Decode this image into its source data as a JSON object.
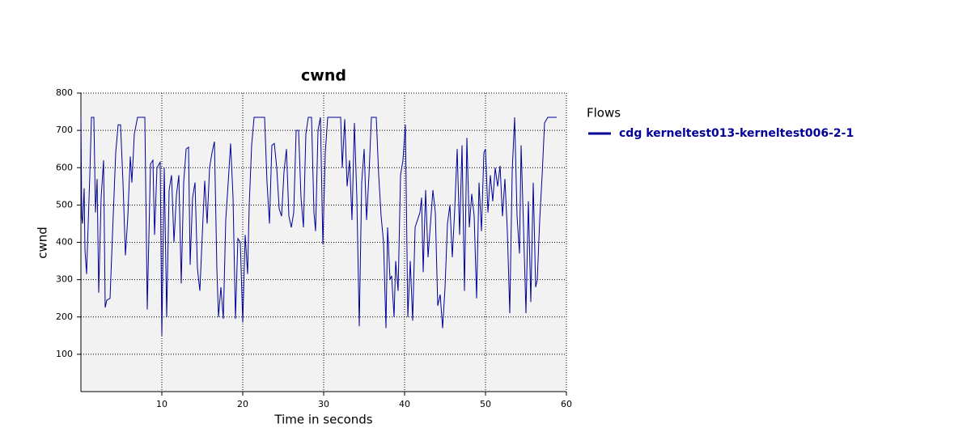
{
  "chart_data": {
    "type": "line",
    "title": "cwnd",
    "xlabel": "Time in seconds",
    "ylabel": "cwnd",
    "legend_title": "Flows",
    "xlim": [
      0,
      60
    ],
    "ylim": [
      0,
      800
    ],
    "xticks": [
      10,
      20,
      30,
      40,
      50,
      60
    ],
    "yticks": [
      100,
      200,
      300,
      400,
      500,
      600,
      700,
      800
    ],
    "grid": true,
    "x": [
      0.0,
      0.1,
      0.2,
      0.4,
      0.5,
      0.7,
      0.9,
      1.1,
      1.3,
      1.6,
      1.8,
      2.0,
      2.2,
      2.5,
      2.8,
      3.0,
      3.2,
      3.6,
      3.9,
      4.3,
      4.6,
      4.9,
      5.2,
      5.5,
      5.8,
      6.1,
      6.3,
      6.6,
      7.0,
      7.5,
      7.9,
      8.2,
      8.6,
      8.9,
      9.1,
      9.4,
      9.8,
      10.0,
      10.3,
      10.6,
      10.9,
      11.2,
      11.5,
      11.8,
      12.1,
      12.4,
      12.7,
      13.0,
      13.3,
      13.5,
      13.8,
      14.1,
      14.4,
      14.7,
      15.0,
      15.3,
      15.6,
      15.9,
      16.2,
      16.5,
      16.8,
      17.0,
      17.3,
      17.6,
      17.9,
      18.2,
      18.5,
      18.8,
      19.1,
      19.4,
      19.7,
      20.0,
      20.3,
      20.6,
      20.8,
      21.1,
      21.4,
      21.8,
      22.2,
      22.7,
      23.0,
      23.3,
      23.6,
      23.9,
      24.2,
      24.5,
      24.8,
      25.1,
      25.4,
      25.7,
      26.0,
      26.3,
      26.6,
      26.9,
      27.2,
      27.5,
      27.8,
      28.1,
      28.5,
      28.8,
      29.0,
      29.3,
      29.6,
      29.9,
      30.2,
      30.5,
      30.9,
      31.3,
      31.7,
      32.1,
      32.3,
      32.6,
      32.9,
      33.2,
      33.5,
      33.8,
      34.1,
      34.4,
      34.7,
      35.0,
      35.3,
      35.6,
      35.9,
      36.2,
      36.5,
      36.8,
      37.1,
      37.4,
      37.7,
      37.9,
      38.2,
      38.4,
      38.7,
      38.9,
      39.2,
      39.5,
      39.8,
      40.1,
      40.4,
      40.7,
      41.0,
      41.3,
      41.6,
      41.9,
      42.1,
      42.3,
      42.6,
      42.9,
      43.2,
      43.5,
      43.8,
      44.1,
      44.4,
      44.7,
      45.0,
      45.3,
      45.6,
      45.9,
      46.2,
      46.5,
      46.8,
      47.1,
      47.4,
      47.7,
      48.0,
      48.3,
      48.6,
      48.9,
      49.2,
      49.5,
      49.8,
      50.0,
      50.3,
      50.6,
      50.9,
      51.2,
      51.5,
      51.8,
      52.1,
      52.4,
      52.7,
      53.0,
      53.3,
      53.6,
      53.9,
      54.2,
      54.4,
      54.7,
      55.0,
      55.3,
      55.6,
      55.9,
      56.2,
      56.4,
      56.7,
      57.0,
      57.3,
      57.7,
      58.2,
      58.8
    ],
    "series": [
      {
        "name": "cdg kerneltest013-kerneltest006-2-1",
        "color": "#000099",
        "values": [
          735,
          470,
          450,
          545,
          380,
          315,
          450,
          580,
          735,
          735,
          480,
          570,
          265,
          520,
          620,
          225,
          245,
          250,
          420,
          640,
          715,
          715,
          560,
          365,
          470,
          630,
          560,
          690,
          735,
          735,
          735,
          220,
          610,
          620,
          420,
          600,
          615,
          150,
          600,
          200,
          540,
          580,
          400,
          525,
          580,
          290,
          560,
          650,
          655,
          340,
          520,
          560,
          330,
          270,
          420,
          565,
          450,
          600,
          640,
          670,
          330,
          200,
          280,
          195,
          460,
          560,
          665,
          520,
          195,
          410,
          400,
          185,
          420,
          315,
          500,
          660,
          735,
          735,
          735,
          735,
          560,
          450,
          660,
          665,
          600,
          490,
          470,
          590,
          650,
          470,
          440,
          480,
          700,
          700,
          520,
          440,
          690,
          735,
          735,
          480,
          430,
          700,
          735,
          395,
          640,
          735,
          735,
          735,
          735,
          735,
          600,
          730,
          550,
          620,
          460,
          720,
          520,
          175,
          560,
          650,
          460,
          580,
          735,
          735,
          735,
          580,
          470,
          400,
          170,
          440,
          300,
          310,
          200,
          350,
          270,
          580,
          620,
          715,
          200,
          350,
          190,
          440,
          460,
          480,
          520,
          320,
          540,
          360,
          450,
          540,
          480,
          230,
          260,
          170,
          280,
          450,
          500,
          360,
          490,
          650,
          420,
          660,
          270,
          680,
          440,
          530,
          470,
          250,
          560,
          430,
          640,
          650,
          480,
          580,
          510,
          600,
          550,
          605,
          470,
          570,
          430,
          210,
          590,
          735,
          470,
          370,
          660,
          440,
          210,
          510,
          240,
          560,
          280,
          300,
          460,
          580,
          720,
          735,
          735,
          735
        ]
      }
    ]
  }
}
